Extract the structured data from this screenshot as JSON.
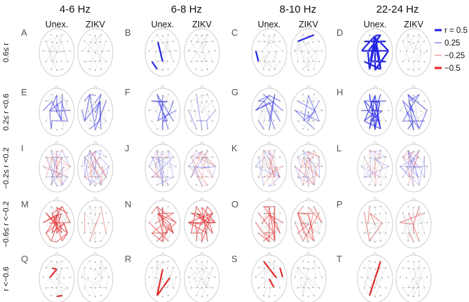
{
  "figure": {
    "freq_bands": [
      "4-6 Hz",
      "6-8 Hz",
      "8-10 Hz",
      "22-24 Hz"
    ],
    "conditions": [
      "Unex.",
      "ZIKV"
    ],
    "row_labels": [
      "0.6≤ r",
      "0.2≤ r <0.6",
      "−0.2≤ r <0.2",
      "−0.6≤ r <−0.2",
      "r <−0.6"
    ],
    "panel_letters": [
      "A",
      "B",
      "C",
      "D",
      "E",
      "F",
      "G",
      "H",
      "I",
      "J",
      "K",
      "L",
      "M",
      "N",
      "O",
      "P",
      "Q",
      "R",
      "S",
      "T"
    ]
  },
  "legend": {
    "items": [
      {
        "label": "r = 0.5",
        "color": "#1f1fe0",
        "width": 3
      },
      {
        "label": "0.25",
        "color": "#8a8af0",
        "width": 1.5
      },
      {
        "label": "−0.25",
        "color": "#f2a0a0",
        "width": 1.5
      },
      {
        "label": "−0.5",
        "color": "#e82020",
        "width": 3
      }
    ]
  },
  "colors": {
    "positive": "#2525e6",
    "negative": "#e62a2a",
    "head_outline": "#cfcfcf",
    "electrode": "#9a9a9a"
  }
}
